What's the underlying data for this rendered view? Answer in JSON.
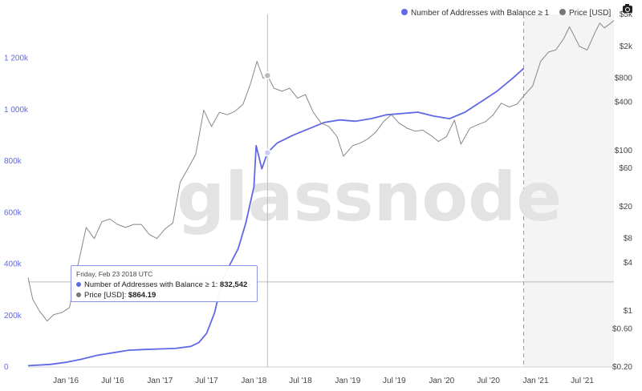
{
  "watermark": "glassnode",
  "legend": [
    {
      "label": "Number of Addresses with Balance ≥ 1",
      "color": "#6068e6"
    },
    {
      "label": "Price [USD]",
      "color": "#888888"
    }
  ],
  "tooltip": {
    "date": "Friday, Feb 23 2018 UTC",
    "series1_label": "Number of Addresses with Balance ≥ 1:",
    "series1_value": "832,542",
    "series2_label": "Price [USD]:",
    "series2_value": "$864.19"
  },
  "icons": {
    "camera": "camera-icon"
  },
  "chart_data": {
    "type": "line",
    "x_tick_labels": [
      "Jan '16",
      "Jul '16",
      "Jan '17",
      "Jul '17",
      "Jan '18",
      "Jul '18",
      "Jan '19",
      "Jul '19",
      "Jan '20",
      "Jul '20",
      "Jan '21",
      "Jul '21"
    ],
    "y_left_ticks": [
      {
        "v": 0,
        "label": "0"
      },
      {
        "v": 200000,
        "label": "200k"
      },
      {
        "v": 400000,
        "label": "400k"
      },
      {
        "v": 600000,
        "label": "600k"
      },
      {
        "v": 800000,
        "label": "800k"
      },
      {
        "v": 1000000,
        "label": "1 000k"
      },
      {
        "v": 1200000,
        "label": "1 200k"
      }
    ],
    "y_left_range": [
      0,
      1370000
    ],
    "y_right_scale": "log",
    "y_right_ticks": [
      {
        "v": 0.2,
        "label": "$0.20"
      },
      {
        "v": 0.6,
        "label": "$0.60"
      },
      {
        "v": 1,
        "label": "$1"
      },
      {
        "v": 4,
        "label": "$4"
      },
      {
        "v": 8,
        "label": "$8"
      },
      {
        "v": 20,
        "label": "$20"
      },
      {
        "v": 60,
        "label": "$60"
      },
      {
        "v": 100,
        "label": "$100"
      },
      {
        "v": 400,
        "label": "$400"
      },
      {
        "v": 800,
        "label": "$800"
      },
      {
        "v": 2000,
        "label": "$2k"
      },
      {
        "v": 5000,
        "label": "$5k"
      }
    ],
    "y_right_range": [
      0.2,
      5000
    ],
    "x_range": [
      "2015-08-07",
      "2021-11-01"
    ],
    "shaded_region": {
      "from": "2020-11-15",
      "to": "2021-11-01"
    },
    "crosshair": {
      "x": "2018-02-23",
      "price": 864.19,
      "addresses": 832542
    },
    "series": [
      {
        "name": "Number of Addresses with Balance ≥ 1",
        "axis": "left",
        "color": "#6068e6",
        "x": [
          "2015-08-07",
          "2015-11-01",
          "2016-01-01",
          "2016-03-01",
          "2016-05-01",
          "2016-07-01",
          "2016-09-01",
          "2016-11-01",
          "2017-01-01",
          "2017-03-01",
          "2017-05-01",
          "2017-06-01",
          "2017-07-01",
          "2017-08-01",
          "2017-09-01",
          "2017-10-01",
          "2017-11-01",
          "2017-12-01",
          "2018-01-01",
          "2018-01-10",
          "2018-02-01",
          "2018-02-23",
          "2018-04-01",
          "2018-06-01",
          "2018-08-01",
          "2018-10-01",
          "2018-12-01",
          "2019-02-01",
          "2019-04-01",
          "2019-06-01",
          "2019-08-01",
          "2019-10-01",
          "2019-12-01",
          "2020-02-01",
          "2020-04-01",
          "2020-06-01",
          "2020-08-01",
          "2020-10-01",
          "2020-11-15"
        ],
        "y": [
          5000,
          10000,
          18000,
          30000,
          45000,
          55000,
          65000,
          68000,
          70000,
          72000,
          80000,
          95000,
          130000,
          210000,
          340000,
          400000,
          460000,
          560000,
          700000,
          860000,
          770000,
          832542,
          870000,
          900000,
          925000,
          950000,
          960000,
          955000,
          965000,
          980000,
          985000,
          990000,
          975000,
          965000,
          990000,
          1030000,
          1070000,
          1120000,
          1160000
        ]
      },
      {
        "name": "Price [USD]",
        "axis": "right",
        "color": "#888888",
        "x": [
          "2015-08-07",
          "2015-08-25",
          "2015-09-20",
          "2015-10-20",
          "2015-11-15",
          "2015-12-15",
          "2016-01-15",
          "2016-02-15",
          "2016-03-20",
          "2016-04-20",
          "2016-05-20",
          "2016-06-20",
          "2016-07-20",
          "2016-08-20",
          "2016-09-20",
          "2016-10-20",
          "2016-11-20",
          "2016-12-20",
          "2017-01-20",
          "2017-02-20",
          "2017-03-20",
          "2017-04-20",
          "2017-05-20",
          "2017-06-20",
          "2017-07-20",
          "2017-08-20",
          "2017-09-20",
          "2017-10-20",
          "2017-11-20",
          "2017-12-20",
          "2018-01-13",
          "2018-02-06",
          "2018-02-23",
          "2018-03-20",
          "2018-04-20",
          "2018-05-20",
          "2018-06-20",
          "2018-07-20",
          "2018-08-20",
          "2018-09-20",
          "2018-10-20",
          "2018-11-20",
          "2018-12-15",
          "2019-01-20",
          "2019-02-20",
          "2019-03-20",
          "2019-04-20",
          "2019-05-20",
          "2019-06-20",
          "2019-07-20",
          "2019-08-20",
          "2019-09-20",
          "2019-10-20",
          "2019-11-20",
          "2019-12-20",
          "2020-01-20",
          "2020-02-20",
          "2020-03-16",
          "2020-04-20",
          "2020-05-20",
          "2020-06-20",
          "2020-07-20",
          "2020-08-20",
          "2020-09-20",
          "2020-10-20",
          "2020-11-20",
          "2020-12-20",
          "2021-01-20",
          "2021-02-20",
          "2021-03-20",
          "2021-04-20",
          "2021-05-12",
          "2021-06-20",
          "2021-07-20",
          "2021-08-20",
          "2021-09-07",
          "2021-09-25",
          "2021-10-20",
          "2021-11-01"
        ],
        "y": [
          2.6,
          1.4,
          1.0,
          0.75,
          0.9,
          0.95,
          1.1,
          3.5,
          11,
          8,
          13,
          14,
          12,
          11,
          12,
          12,
          9,
          8,
          10.5,
          12.5,
          40,
          60,
          90,
          320,
          200,
          300,
          280,
          310,
          380,
          700,
          1300,
          800,
          864,
          600,
          550,
          600,
          450,
          500,
          300,
          220,
          200,
          150,
          85,
          115,
          125,
          140,
          170,
          230,
          280,
          220,
          190,
          175,
          180,
          155,
          130,
          150,
          240,
          120,
          190,
          210,
          230,
          280,
          390,
          350,
          380,
          500,
          640,
          1300,
          1700,
          1800,
          2500,
          3500,
          2000,
          1800,
          3000,
          3900,
          3400,
          3900,
          4200
        ]
      }
    ]
  }
}
